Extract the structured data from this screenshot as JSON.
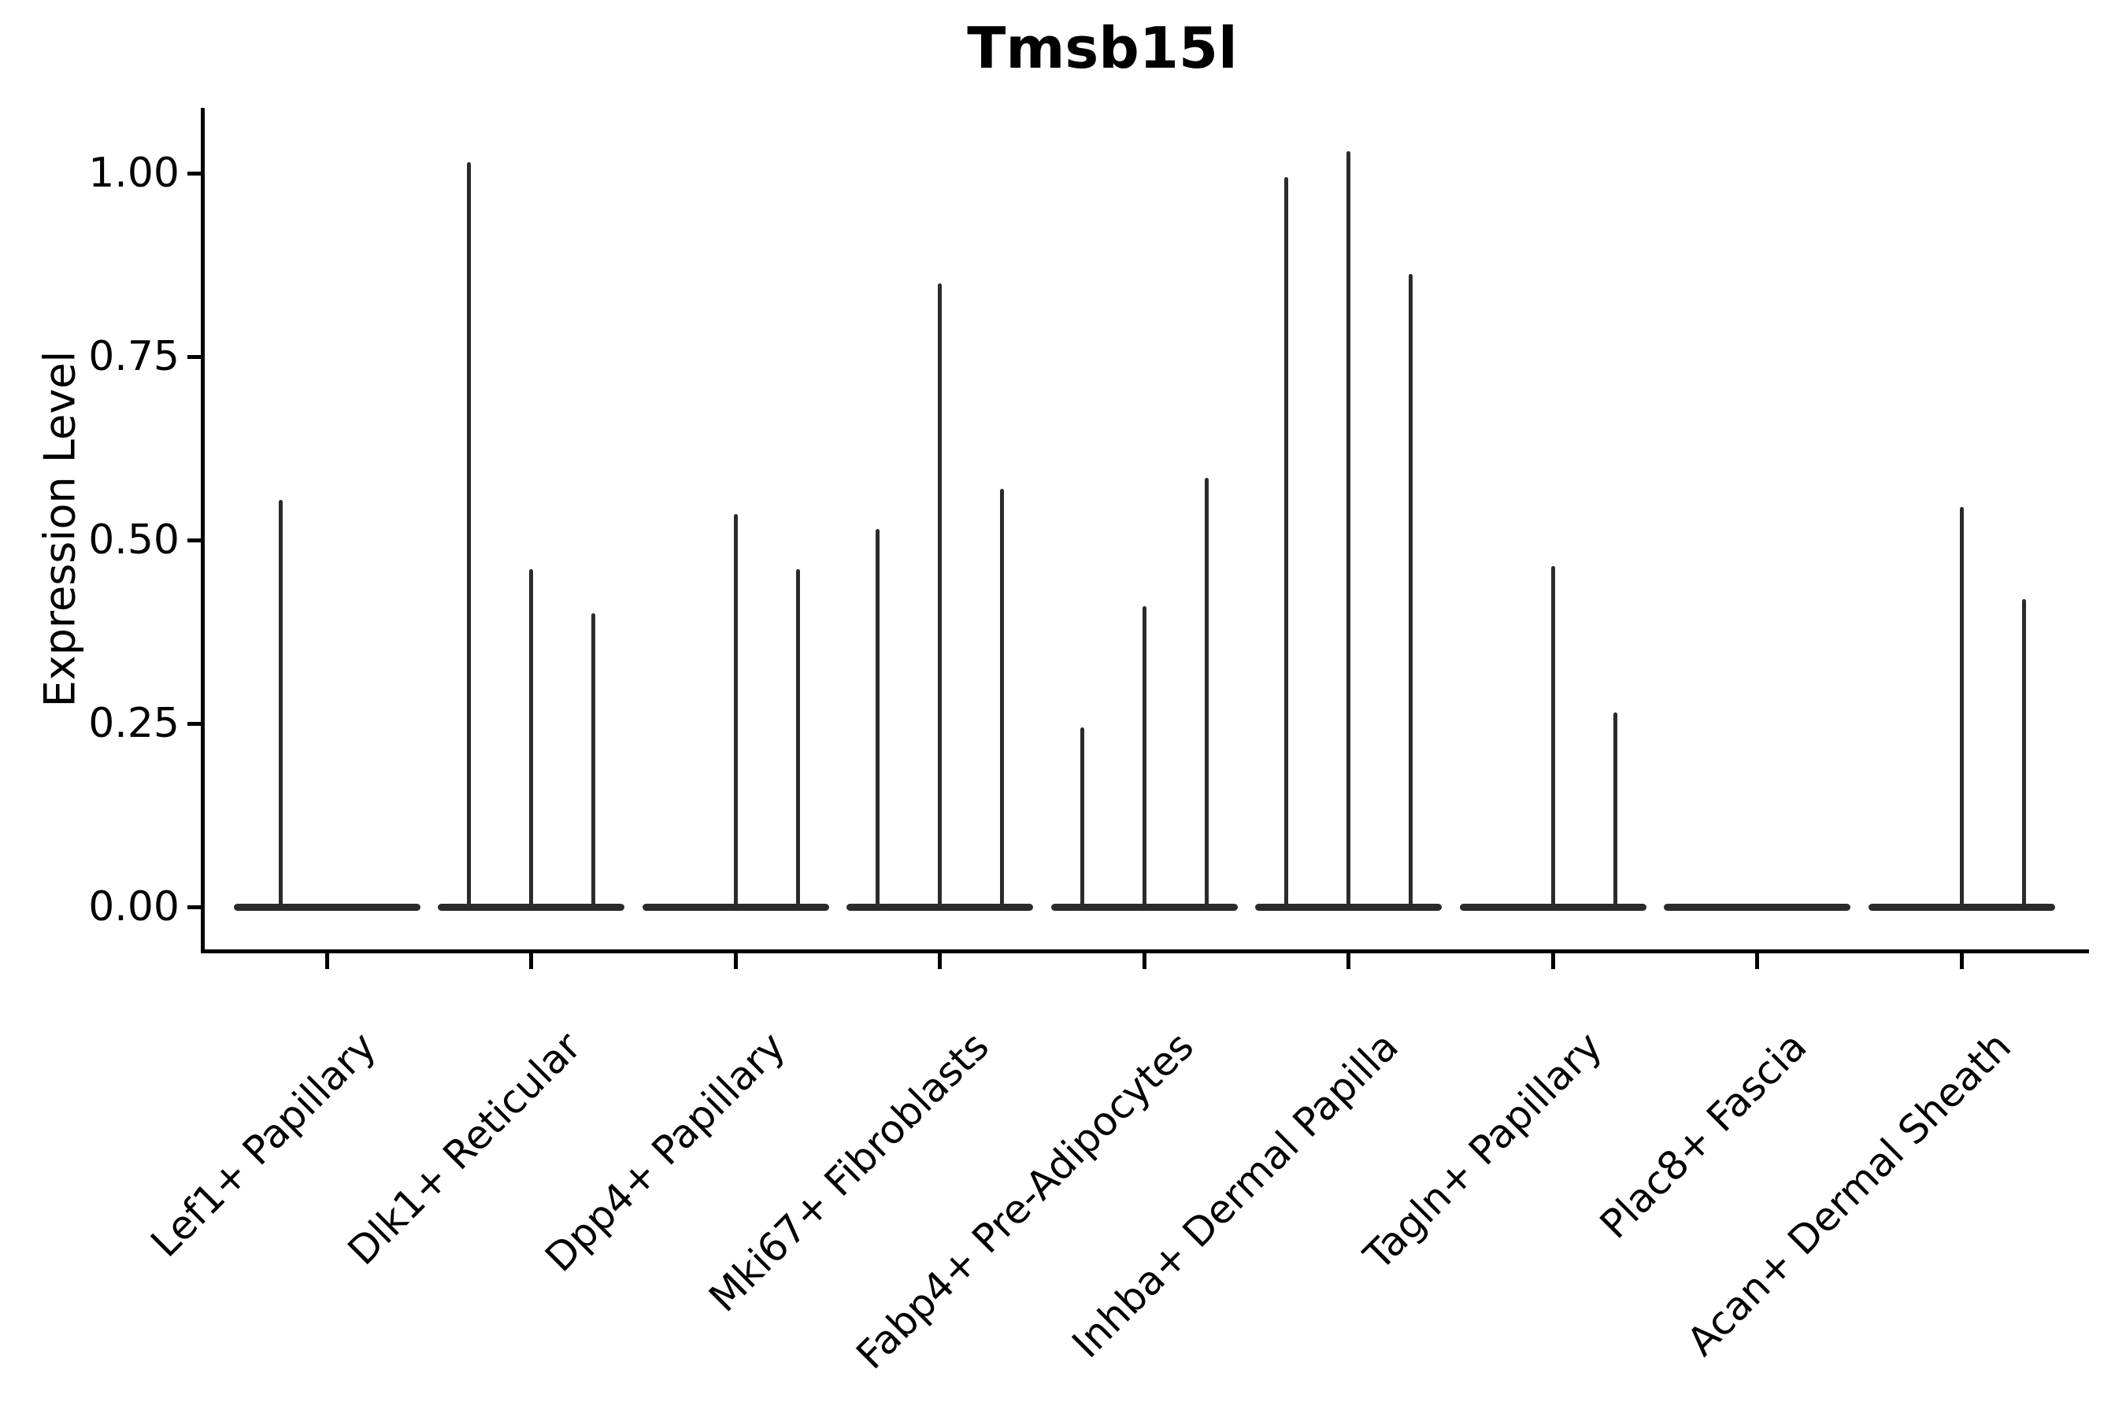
{
  "title": "Tmsb15l",
  "y_axis": {
    "label": "Expression Level",
    "ticks": [
      {
        "label": "1.00",
        "value": 1.0
      },
      {
        "label": "0.75",
        "value": 0.75
      },
      {
        "label": "0.50",
        "value": 0.5
      },
      {
        "label": "0.25",
        "value": 0.25
      },
      {
        "label": "0.00",
        "value": 0.0
      }
    ]
  },
  "x_axis": {
    "categories": [
      "Lef1+ Papillary",
      "Dlk1+ Reticular",
      "Dpp4+ Papillary",
      "Mki67+ Fibroblasts",
      "Fabp4+ Pre-Adipocytes",
      "Inhba+ Dermal Papilla",
      "Tagln+ Papillary",
      "Plac8+ Fascia",
      "Acan+ Dermal Sheath"
    ]
  },
  "colors": {
    "ink": "#000000",
    "violin_stroke": "#2b2b2b",
    "background": "#ffffff"
  },
  "chart_data": {
    "type": "violin",
    "title": "Tmsb15l",
    "xlabel": "",
    "ylabel": "Expression Level",
    "ylim": [
      -0.06,
      1.09
    ],
    "grid": false,
    "legend": "none",
    "description": "Violin plot of Tmsb15l expression; bulk of cells at 0 (flat collapsed violins along baseline), thin vertical spikes mark sub-violin tails reaching the peak expression values listed.",
    "categories": [
      "Lef1+ Papillary",
      "Dlk1+ Reticular",
      "Dpp4+ Papillary",
      "Mki67+ Fibroblasts",
      "Fabp4+ Pre-Adipocytes",
      "Inhba+ Dermal Papilla",
      "Tagln+ Papillary",
      "Plac8+ Fascia",
      "Acan+ Dermal Sheath"
    ],
    "groups": [
      {
        "category": "Lef1+ Papillary",
        "spikes": [
          {
            "sub": "left",
            "dx": -59,
            "expression": 0.555
          }
        ]
      },
      {
        "category": "Dlk1+ Reticular",
        "spikes": [
          {
            "sub": "left",
            "dx": -79,
            "expression": 1.015
          },
          {
            "sub": "center",
            "dx": 0,
            "expression": 0.46
          },
          {
            "sub": "right",
            "dx": 79,
            "expression": 0.4
          }
        ]
      },
      {
        "category": "Dpp4+ Papillary",
        "spikes": [
          {
            "sub": "center",
            "dx": 0,
            "expression": 0.535
          },
          {
            "sub": "right",
            "dx": 79,
            "expression": 0.46
          }
        ]
      },
      {
        "category": "Mki67+ Fibroblasts",
        "spikes": [
          {
            "sub": "left",
            "dx": -79,
            "expression": 0.515
          },
          {
            "sub": "center",
            "dx": 0,
            "expression": 0.85
          },
          {
            "sub": "right",
            "dx": 79,
            "expression": 0.57
          }
        ]
      },
      {
        "category": "Fabp4+ Pre-Adipocytes",
        "spikes": [
          {
            "sub": "left",
            "dx": -79,
            "expression": 0.245
          },
          {
            "sub": "center",
            "dx": 0,
            "expression": 0.41
          },
          {
            "sub": "right",
            "dx": 79,
            "expression": 0.585
          }
        ]
      },
      {
        "category": "Inhba+ Dermal Papilla",
        "spikes": [
          {
            "sub": "left",
            "dx": -79,
            "expression": 0.995
          },
          {
            "sub": "center",
            "dx": 0,
            "expression": 1.03
          },
          {
            "sub": "right",
            "dx": 79,
            "expression": 0.863
          }
        ]
      },
      {
        "category": "Tagln+ Papillary",
        "spikes": [
          {
            "sub": "center",
            "dx": 0,
            "expression": 0.465
          },
          {
            "sub": "right",
            "dx": 79,
            "expression": 0.265
          }
        ]
      },
      {
        "category": "Plac8+ Fascia",
        "spikes": []
      },
      {
        "category": "Acan+ Dermal Sheath",
        "spikes": [
          {
            "sub": "center",
            "dx": 0,
            "expression": 0.545
          },
          {
            "sub": "right",
            "dx": 79,
            "expression": 0.42
          }
        ]
      }
    ]
  }
}
